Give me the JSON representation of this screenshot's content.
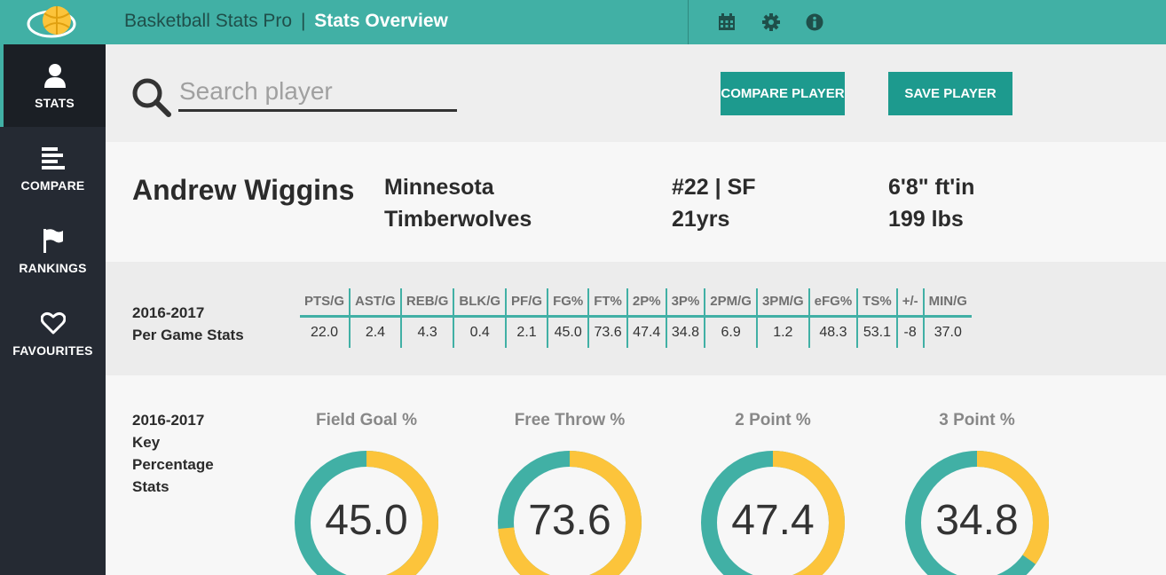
{
  "colors": {
    "teal": "#41b0a5",
    "button": "#1d9a8e",
    "gold": "#fcc43b",
    "sidebar": "#252a33"
  },
  "sidebar": {
    "logo_icon": "basketball-logo-icon",
    "items": [
      {
        "label": "STATS",
        "icon": "user-icon",
        "active": true
      },
      {
        "label": "COMPARE",
        "icon": "align-left-icon",
        "active": false
      },
      {
        "label": "RANKINGS",
        "icon": "flag-icon",
        "active": false
      },
      {
        "label": "FAVOURITES",
        "icon": "heart-icon",
        "active": false
      }
    ]
  },
  "header": {
    "app_name": "Basketball Stats Pro",
    "separator": "|",
    "page_title": "Stats Overview",
    "icons": [
      "calendar-icon",
      "gear-icon",
      "info-icon"
    ]
  },
  "search": {
    "placeholder": "Search player",
    "value": "",
    "compare_label": "COMPARE PLAYER",
    "save_label": "SAVE PLAYER"
  },
  "player": {
    "name": "Andrew Wiggins",
    "team_line1": "Minnesota",
    "team_line2": "Timberwolves",
    "number_position": "#22 | SF",
    "age": "21yrs",
    "height": "6'8\" ft'in",
    "weight": "199 lbs"
  },
  "per_game": {
    "label_line1": "2016-2017",
    "label_line2": "Per Game Stats",
    "headers": [
      "PTS/G",
      "AST/G",
      "REB/G",
      "BLK/G",
      "PF/G",
      "FG%",
      "FT%",
      "2P%",
      "3P%",
      "2PM/G",
      "3PM/G",
      "eFG%",
      "TS%",
      "+/-",
      "MIN/G"
    ],
    "values": [
      "22.0",
      "2.4",
      "4.3",
      "0.4",
      "2.1",
      "45.0",
      "73.6",
      "47.4",
      "34.8",
      "6.9",
      "1.2",
      "48.3",
      "53.1",
      "-8",
      "37.0"
    ]
  },
  "key_pct": {
    "label_line1": "2016-2017",
    "label_line2": "Key",
    "label_line3": "Percentage",
    "label_line4": "Stats",
    "gauges": [
      {
        "title": "Field Goal %",
        "value": "45.0",
        "percent": 45.0
      },
      {
        "title": "Free Throw %",
        "value": "73.6",
        "percent": 73.6
      },
      {
        "title": "2 Point %",
        "value": "47.4",
        "percent": 47.4
      },
      {
        "title": "3 Point %",
        "value": "34.8",
        "percent": 34.8
      }
    ]
  }
}
